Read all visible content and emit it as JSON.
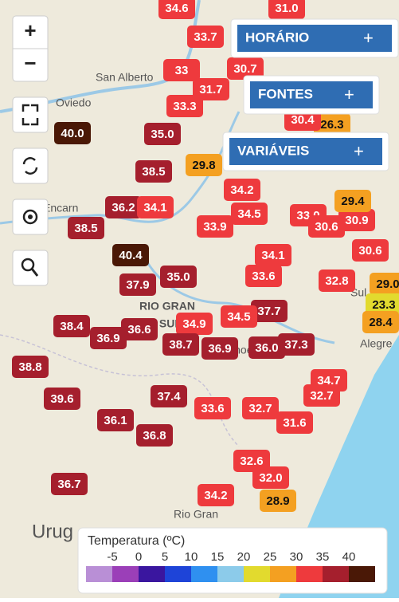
{
  "controls": {
    "zoom_in": "+",
    "zoom_out": "−"
  },
  "buttons": [
    {
      "label": "HORÁRIO",
      "icon": "+"
    },
    {
      "label": "FONTES",
      "icon": "+"
    },
    {
      "label": "VARIÁVEIS",
      "icon": "+"
    }
  ],
  "place_labels": [
    "San Alberto",
    "Oviedo",
    "Encarn",
    "RIO GRAN",
    "DO SUL",
    "Urug",
    "Rio Gran",
    "Alegre",
    "Sul",
    "Pachoe"
  ],
  "markers": [
    "34.6",
    "31.0",
    "33.7",
    "30.7",
    "33",
    "31.7",
    "33.3",
    "40.0",
    "35.0",
    "38.5",
    "29.8",
    "34.2",
    "36.2",
    "34.1",
    "38.5",
    "34.5",
    "33.9",
    "33.0",
    "30.6",
    "30.9",
    "29.4",
    "40.4",
    "34.1",
    "35.0",
    "37.9",
    "33.6",
    "32.8",
    "30.6",
    "29.0",
    "23.3",
    "28.4",
    "37.7",
    "34.5",
    "34.9",
    "36.6",
    "38.4",
    "36.9",
    "38.8",
    "38.7",
    "36.9",
    "36.0",
    "37.3",
    "34.7",
    "32.7",
    "39.6",
    "37.4",
    "33.6",
    "32.7",
    "36.1",
    "31.6",
    "36.8",
    "32.6",
    "32.0",
    "28.9",
    "36.7",
    "34.2",
    "26.3",
    "30.4"
  ],
  "legend": {
    "title": "Temperatura (ºC)",
    "ticks": [
      -5,
      0,
      5,
      10,
      15,
      20,
      25,
      30,
      35,
      40
    ],
    "colors": [
      "#b98fd6",
      "#9b3fb8",
      "#3a169f",
      "#1e44d8",
      "#2f90f0",
      "#8ccbea",
      "#e2da2e",
      "#f4a021",
      "#ee3a3d",
      "#a51f2d",
      "#4a1806"
    ]
  }
}
